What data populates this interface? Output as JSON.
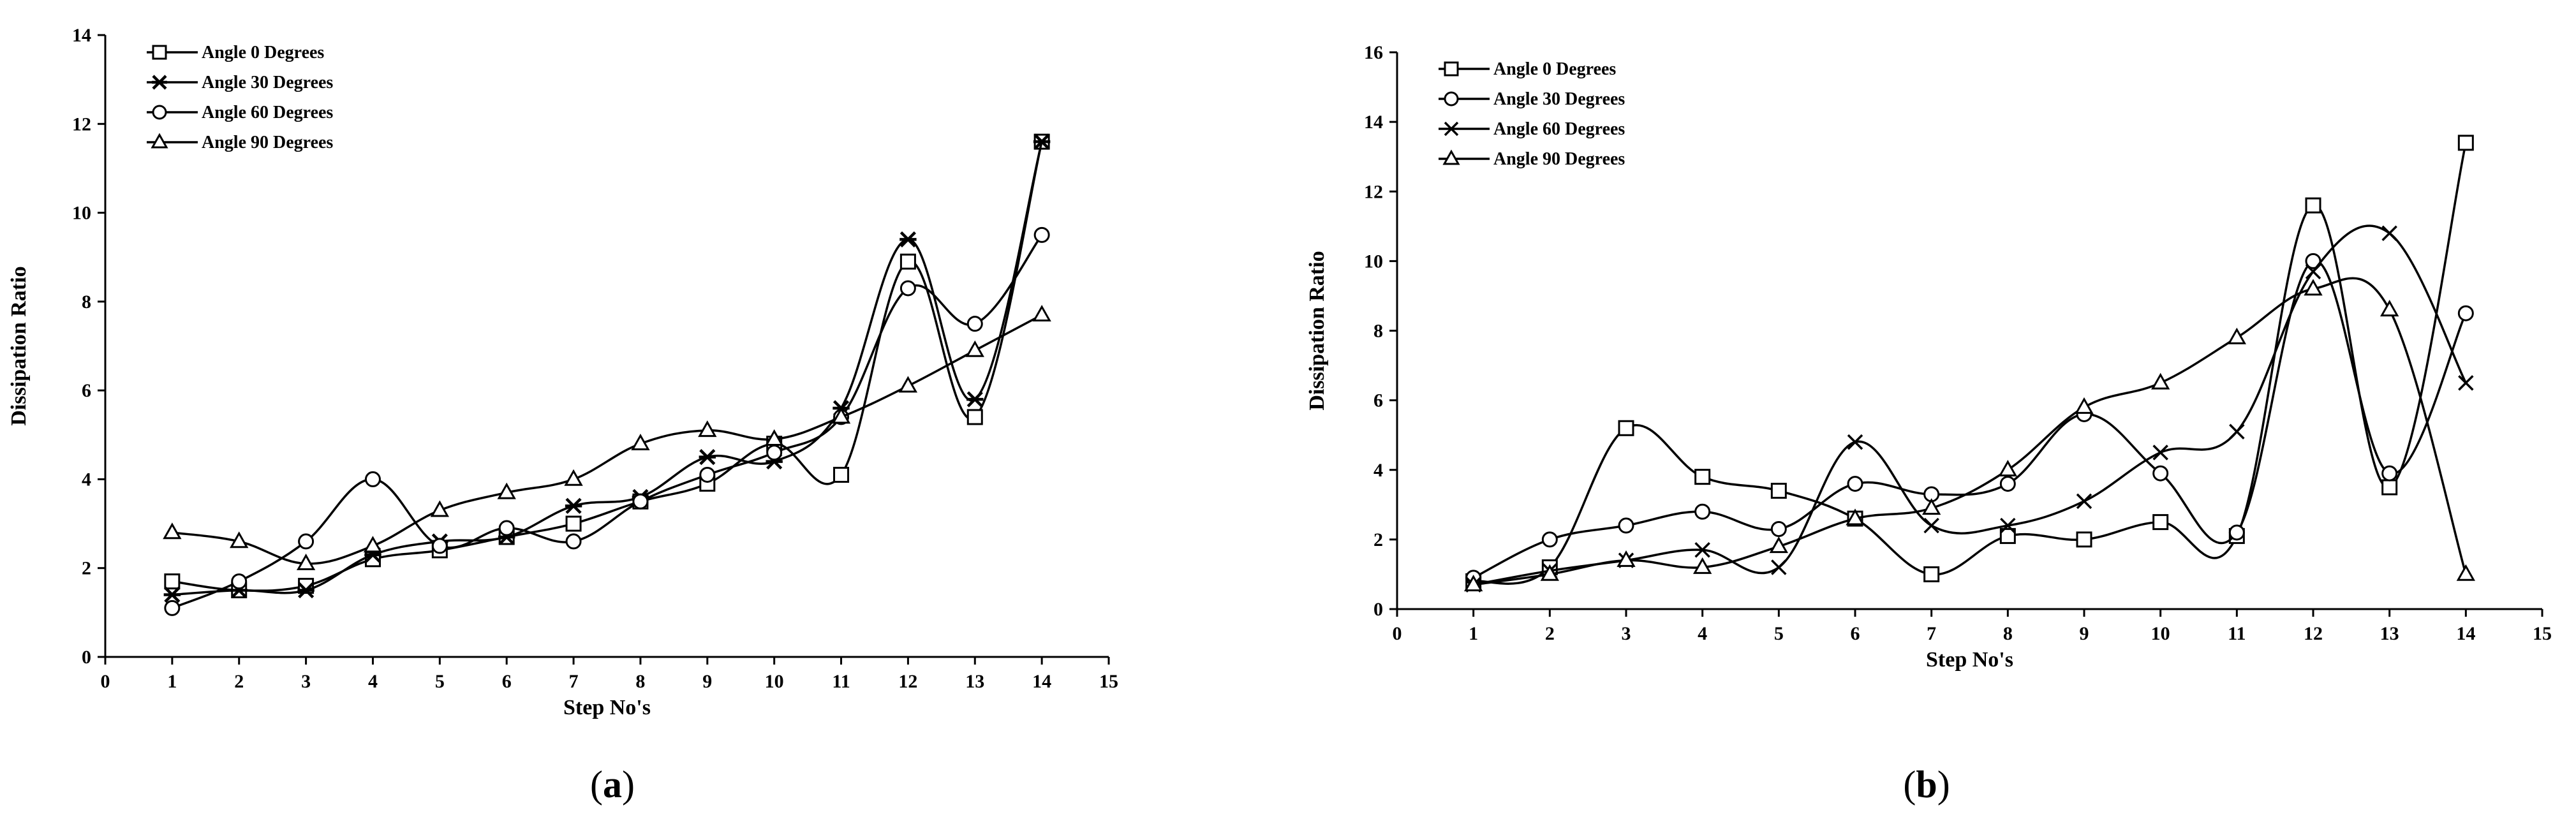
{
  "figure": {
    "panel_labels": [
      {
        "open": "(",
        "letter": "a",
        "close": ")"
      },
      {
        "open": "(",
        "letter": "b",
        "close": ")"
      }
    ]
  },
  "chart_data": [
    {
      "type": "line",
      "panel": "a",
      "title": "",
      "xlabel": "Step No's",
      "ylabel": "Dissipation Ratio",
      "xlim": [
        0,
        15
      ],
      "ylim": [
        0,
        14
      ],
      "xticks": [
        0,
        1,
        2,
        3,
        4,
        5,
        6,
        7,
        8,
        9,
        10,
        11,
        12,
        13,
        14,
        15
      ],
      "yticks": [
        0,
        2,
        4,
        6,
        8,
        10,
        12,
        14
      ],
      "legend_position": "top-left",
      "grid": false,
      "x": [
        1,
        2,
        3,
        4,
        5,
        6,
        7,
        8,
        9,
        10,
        11,
        12,
        13,
        14
      ],
      "series": [
        {
          "name": "Angle 0 Degrees",
          "marker": "square",
          "values": [
            1.7,
            1.5,
            1.6,
            2.2,
            2.4,
            2.7,
            3.0,
            3.5,
            3.9,
            4.8,
            4.1,
            8.9,
            5.4,
            11.6
          ]
        },
        {
          "name": "Angle 30 Degrees",
          "marker": "star",
          "values": [
            1.4,
            1.5,
            1.5,
            2.3,
            2.6,
            2.7,
            3.4,
            3.6,
            4.5,
            4.4,
            5.6,
            9.4,
            5.8,
            11.6
          ]
        },
        {
          "name": "Angle 60 Degrees",
          "marker": "circle",
          "values": [
            1.1,
            1.7,
            2.6,
            4.0,
            2.5,
            2.9,
            2.6,
            3.5,
            4.1,
            4.6,
            5.4,
            8.3,
            7.5,
            9.5
          ]
        },
        {
          "name": "Angle 90 Degrees",
          "marker": "triangle",
          "values": [
            2.8,
            2.6,
            2.1,
            2.5,
            3.3,
            3.7,
            4.0,
            4.8,
            5.1,
            4.9,
            5.4,
            6.1,
            6.9,
            7.7
          ]
        }
      ]
    },
    {
      "type": "line",
      "panel": "b",
      "title": "",
      "xlabel": "Step No's",
      "ylabel": "Dissipation Ratio",
      "xlim": [
        0,
        15
      ],
      "ylim": [
        0,
        16
      ],
      "xticks": [
        0,
        1,
        2,
        3,
        4,
        5,
        6,
        7,
        8,
        9,
        10,
        11,
        12,
        13,
        14,
        15
      ],
      "yticks": [
        0,
        2,
        4,
        6,
        8,
        10,
        12,
        14,
        16
      ],
      "legend_position": "top-left",
      "grid": false,
      "x": [
        1,
        2,
        3,
        4,
        5,
        6,
        7,
        8,
        9,
        10,
        11,
        12,
        13,
        14
      ],
      "series": [
        {
          "name": "Angle 0 Degrees",
          "marker": "square",
          "values": [
            0.8,
            1.2,
            5.2,
            3.8,
            3.4,
            2.6,
            1.0,
            2.1,
            2.0,
            2.5,
            2.1,
            11.6,
            3.5,
            13.4
          ]
        },
        {
          "name": "Angle 30 Degrees",
          "marker": "circle",
          "values": [
            0.9,
            2.0,
            2.4,
            2.8,
            2.3,
            3.6,
            3.3,
            3.6,
            5.6,
            3.9,
            2.2,
            10.0,
            3.9,
            8.5
          ]
        },
        {
          "name": "Angle 60  Degrees",
          "marker": "cross",
          "values": [
            0.7,
            1.1,
            1.4,
            1.7,
            1.2,
            4.8,
            2.4,
            2.4,
            3.1,
            4.5,
            5.1,
            9.7,
            10.8,
            6.5
          ]
        },
        {
          "name": "Angle 90 Degrees",
          "marker": "triangle",
          "values": [
            0.7,
            1.0,
            1.4,
            1.2,
            1.8,
            2.6,
            2.9,
            4.0,
            5.8,
            6.5,
            7.8,
            9.2,
            8.6,
            1.0
          ]
        }
      ]
    }
  ]
}
